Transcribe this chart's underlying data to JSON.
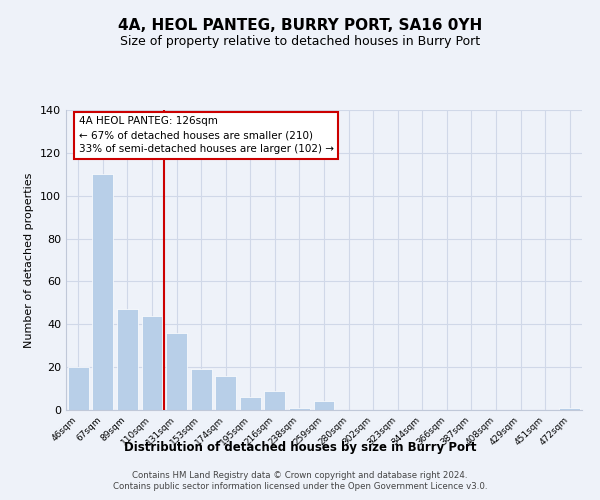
{
  "title": "4A, HEOL PANTEG, BURRY PORT, SA16 0YH",
  "subtitle": "Size of property relative to detached houses in Burry Port",
  "xlabel": "Distribution of detached houses by size in Burry Port",
  "ylabel": "Number of detached properties",
  "bar_labels": [
    "46sqm",
    "67sqm",
    "89sqm",
    "110sqm",
    "131sqm",
    "153sqm",
    "174sqm",
    "195sqm",
    "216sqm",
    "238sqm",
    "259sqm",
    "280sqm",
    "302sqm",
    "323sqm",
    "344sqm",
    "366sqm",
    "387sqm",
    "408sqm",
    "429sqm",
    "451sqm",
    "472sqm"
  ],
  "bar_values": [
    20,
    110,
    47,
    44,
    36,
    19,
    16,
    6,
    9,
    1,
    4,
    0,
    0,
    0,
    0,
    0,
    0,
    0,
    0,
    0,
    1
  ],
  "bar_color": "#b8cfe8",
  "vline_color": "#cc0000",
  "vline_index": 4,
  "ylim": [
    0,
    140
  ],
  "yticks": [
    0,
    20,
    40,
    60,
    80,
    100,
    120,
    140
  ],
  "annotation_title": "4A HEOL PANTEG: 126sqm",
  "annotation_line1": "← 67% of detached houses are smaller (210)",
  "annotation_line2": "33% of semi-detached houses are larger (102) →",
  "annotation_box_facecolor": "#ffffff",
  "annotation_box_edgecolor": "#cc0000",
  "footer_line1": "Contains HM Land Registry data © Crown copyright and database right 2024.",
  "footer_line2": "Contains public sector information licensed under the Open Government Licence v3.0.",
  "background_color": "#eef2f9",
  "grid_color": "#d0d8e8",
  "spine_color": "#c0c8d8"
}
